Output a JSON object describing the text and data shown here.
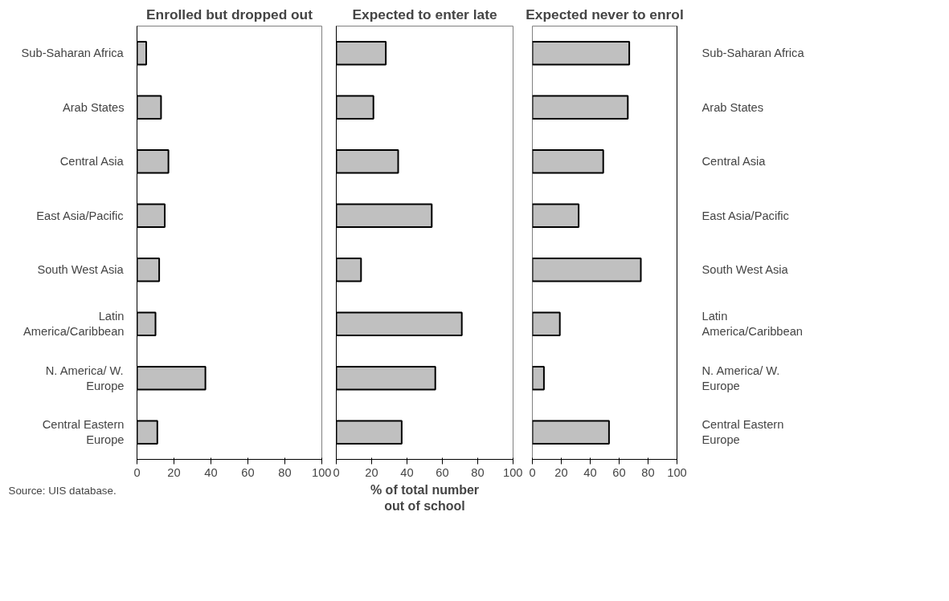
{
  "chart_data": [
    {
      "type": "bar",
      "orientation": "horizontal",
      "title": "Enrolled but dropped out",
      "categories": [
        "Sub-Saharan Africa",
        "Arab States",
        "Central Asia",
        "East Asia/Pacific",
        "South West Asia",
        "Latin America/Caribbean",
        "N. America/ W. Europe",
        "Central Eastern Europe"
      ],
      "values": [
        5,
        13,
        17,
        15,
        12,
        10,
        37,
        11
      ],
      "color": "#c0c0c0",
      "xlim": [
        0,
        100
      ],
      "xticks": [
        0,
        20,
        40,
        60,
        80,
        100
      ],
      "annotations": [
        "Source: UIS database."
      ]
    },
    {
      "type": "bar",
      "orientation": "horizontal",
      "title": "Expected to enter late",
      "xlabel": "% of total number out of school",
      "categories": [
        "Sub-Saharan Africa",
        "Arab States",
        "Central Asia",
        "East Asia/Pacific",
        "South West Asia",
        "Latin America/Caribbean",
        "N. America/ W. Europe",
        "Central Eastern Europe"
      ],
      "values": [
        28,
        21,
        35,
        54,
        14,
        71,
        56,
        37
      ],
      "color": "#c0c0c0",
      "xlim": [
        0,
        100
      ],
      "xticks": [
        0,
        20,
        40,
        60,
        80,
        100
      ],
      "tick_labels": "x"
    },
    {
      "type": "bar",
      "orientation": "horizontal",
      "title": "Expected never to enrol",
      "categories": [
        "Sub-Saharan Africa",
        "Arab States",
        "Central Asia",
        "East Asia/Pacific",
        "South West Asia",
        "Latin America/Caribbean",
        "N. America/ W. Europe",
        "Central Eastern Europe"
      ],
      "values": [
        67,
        66,
        49,
        32,
        75,
        19,
        8,
        53
      ],
      "color": "#c0c0c0",
      "xlim": [
        0,
        100
      ],
      "xticks": [
        0,
        20,
        40,
        60,
        80,
        100
      ]
    }
  ]
}
